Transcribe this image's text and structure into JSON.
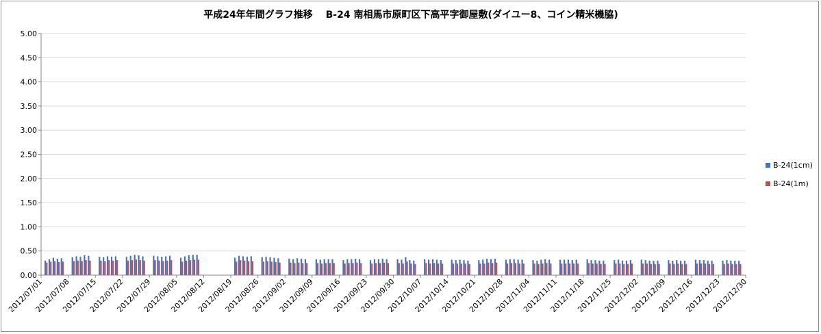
{
  "chart_data": {
    "type": "bar",
    "title": "平成24年年間グラフ推移　 B-24 南相馬市原町区下高平字御屋敷(ダイユー8、コイン精米機脇)",
    "xlabel": "",
    "ylabel": "",
    "ylim": [
      0,
      5
    ],
    "yticks": [
      "0.00",
      "0.50",
      "1.00",
      "1.50",
      "2.00",
      "2.50",
      "3.00",
      "3.50",
      "4.00",
      "4.50",
      "5.00"
    ],
    "x_tick_labels": [
      "2012/07/01",
      "2012/07/08",
      "2012/07/15",
      "2012/07/22",
      "2012/07/29",
      "2012/08/05",
      "2012/08/12",
      "2012/08/19",
      "2012/08/26",
      "2012/09/02",
      "2012/09/09",
      "2012/09/16",
      "2012/09/23",
      "2012/09/30",
      "2012/10/07",
      "2012/10/14",
      "2012/10/21",
      "2012/10/28",
      "2012/11/04",
      "2012/11/11",
      "2012/11/18",
      "2012/11/25",
      "2012/12/02",
      "2012/12/09",
      "2012/12/16",
      "2012/12/23",
      "2012/12/30"
    ],
    "grid": true,
    "legend_position": "right",
    "series": [
      {
        "name": "B-24(1cm)",
        "color": "#4472C4",
        "weeks": [
          [
            0.3,
            0.33,
            0.36,
            0.34,
            0.35
          ],
          [
            0.37,
            0.39,
            0.38,
            0.41,
            0.4
          ],
          [
            0.38,
            0.37,
            0.39,
            0.38,
            0.39
          ],
          [
            0.38,
            0.4,
            0.42,
            0.41,
            0.39
          ],
          [
            0.4,
            0.39,
            0.38,
            0.39,
            0.4
          ],
          [
            0.36,
            0.39,
            0.41,
            0.42,
            0.42
          ],
          [],
          [
            0.36,
            0.4,
            0.39,
            0.38,
            0.39
          ],
          [
            0.37,
            0.38,
            0.37,
            0.36,
            0.35
          ],
          [
            0.34,
            0.33,
            0.35,
            0.34,
            0.33
          ],
          [
            0.33,
            0.32,
            0.33,
            0.33,
            0.33
          ],
          [
            0.31,
            0.33,
            0.33,
            0.34,
            0.33
          ],
          [
            0.31,
            0.33,
            0.33,
            0.34,
            0.33
          ],
          [
            0.33,
            0.32,
            0.37,
            0.31,
            0.3
          ],
          [
            0.33,
            0.32,
            0.33,
            0.32,
            0.31
          ],
          [
            0.32,
            0.31,
            0.32,
            0.31,
            0.3
          ],
          [
            0.31,
            0.32,
            0.34,
            0.33,
            0.34
          ],
          [
            0.32,
            0.33,
            0.33,
            0.32,
            0.32
          ],
          [
            0.31,
            0.3,
            0.32,
            0.33,
            0.32
          ],
          [
            0.32,
            0.32,
            0.32,
            0.31,
            0.32
          ],
          [
            0.33,
            0.31,
            0.31,
            0.3,
            0.3
          ],
          [
            0.31,
            0.32,
            0.3,
            0.3,
            0.31
          ],
          [
            0.32,
            0.31,
            0.3,
            0.3,
            0.3
          ],
          [
            0.31,
            0.3,
            0.31,
            0.3,
            0.3
          ],
          [
            0.32,
            0.31,
            0.31,
            0.3,
            0.3
          ],
          [
            0.3,
            0.31,
            0.3,
            0.3,
            0.3
          ]
        ]
      },
      {
        "name": "B-24(1m)",
        "color": "#C0504D",
        "weeks": [
          [
            0.26,
            0.28,
            0.29,
            0.27,
            0.28
          ],
          [
            0.29,
            0.3,
            0.29,
            0.31,
            0.3
          ],
          [
            0.3,
            0.29,
            0.31,
            0.3,
            0.31
          ],
          [
            0.3,
            0.31,
            0.32,
            0.31,
            0.3
          ],
          [
            0.31,
            0.3,
            0.29,
            0.3,
            0.31
          ],
          [
            0.28,
            0.3,
            0.31,
            0.32,
            0.32
          ],
          [],
          [
            0.28,
            0.31,
            0.3,
            0.29,
            0.29
          ],
          [
            0.28,
            0.29,
            0.28,
            0.27,
            0.26
          ],
          [
            0.26,
            0.25,
            0.26,
            0.25,
            0.25
          ],
          [
            0.25,
            0.24,
            0.25,
            0.25,
            0.25
          ],
          [
            0.24,
            0.25,
            0.25,
            0.26,
            0.25
          ],
          [
            0.24,
            0.25,
            0.25,
            0.26,
            0.25
          ],
          [
            0.25,
            0.24,
            0.28,
            0.24,
            0.23
          ],
          [
            0.25,
            0.24,
            0.25,
            0.24,
            0.24
          ],
          [
            0.24,
            0.24,
            0.24,
            0.24,
            0.23
          ],
          [
            0.24,
            0.24,
            0.26,
            0.25,
            0.26
          ],
          [
            0.24,
            0.25,
            0.25,
            0.24,
            0.24
          ],
          [
            0.24,
            0.23,
            0.24,
            0.25,
            0.24
          ],
          [
            0.24,
            0.24,
            0.24,
            0.24,
            0.24
          ],
          [
            0.25,
            0.24,
            0.24,
            0.23,
            0.23
          ],
          [
            0.24,
            0.24,
            0.23,
            0.23,
            0.24
          ],
          [
            0.24,
            0.24,
            0.23,
            0.23,
            0.23
          ],
          [
            0.24,
            0.23,
            0.24,
            0.23,
            0.23
          ],
          [
            0.24,
            0.24,
            0.24,
            0.23,
            0.23
          ],
          [
            0.23,
            0.24,
            0.23,
            0.23,
            0.23
          ]
        ]
      }
    ]
  }
}
